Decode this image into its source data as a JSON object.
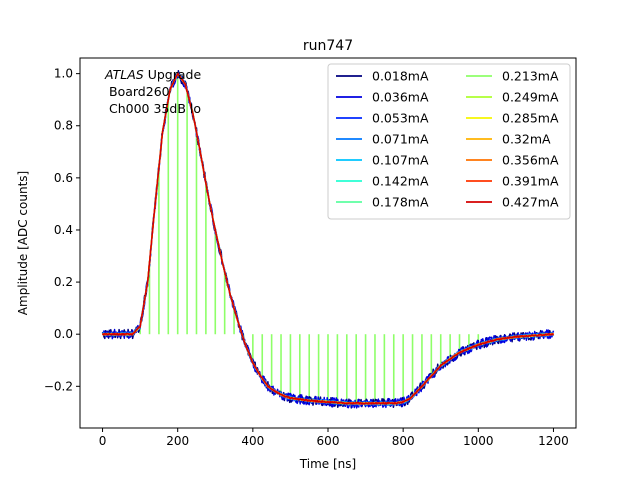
{
  "chart_data": {
    "type": "line",
    "title": "run747",
    "xlabel": "Time [ns]",
    "ylabel": "Amplitude [ADC counts]",
    "xlim": [
      -60,
      1260
    ],
    "ylim": [
      -0.36,
      1.06
    ],
    "xticks": [
      0,
      200,
      400,
      600,
      800,
      1000,
      1200
    ],
    "yticks": [
      -0.2,
      0.0,
      0.2,
      0.4,
      0.6,
      0.8,
      1.0
    ],
    "xtick_labels": [
      "0",
      "200",
      "400",
      "600",
      "800",
      "1000",
      "1200"
    ],
    "ytick_labels": [
      "−0.2",
      "0.0",
      "0.2",
      "0.4",
      "0.6",
      "0.8",
      "1.0"
    ],
    "grid": false,
    "legend_position": "top-right",
    "legend_columns": 2,
    "annotation": {
      "italic": "ATLAS",
      "rest": " Upgrade",
      "line2": "Board260",
      "line3": "Ch000 35dB lo"
    },
    "pulse_shape": {
      "x": [
        0,
        80,
        100,
        120,
        140,
        160,
        180,
        200,
        220,
        240,
        260,
        280,
        300,
        320,
        340,
        360,
        380,
        400,
        420,
        440,
        460,
        480,
        500,
        550,
        600,
        650,
        700,
        750,
        780,
        800,
        820,
        850,
        900,
        950,
        1000,
        1050,
        1100,
        1150,
        1200
      ],
      "y": [
        0.0,
        0.0,
        0.03,
        0.2,
        0.5,
        0.78,
        0.94,
        1.0,
        0.96,
        0.85,
        0.7,
        0.54,
        0.4,
        0.27,
        0.15,
        0.05,
        -0.04,
        -0.11,
        -0.16,
        -0.2,
        -0.22,
        -0.235,
        -0.245,
        -0.255,
        -0.26,
        -0.265,
        -0.265,
        -0.265,
        -0.265,
        -0.26,
        -0.245,
        -0.2,
        -0.12,
        -0.07,
        -0.04,
        -0.02,
        -0.01,
        -0.005,
        0.0
      ]
    },
    "sampled_series_index": 7,
    "sample_times": [
      100,
      125,
      150,
      175,
      200,
      225,
      250,
      275,
      300,
      325,
      350,
      375,
      400,
      425,
      450,
      475,
      500,
      525,
      550,
      575,
      600,
      625,
      650,
      675,
      700,
      725,
      750,
      775,
      800,
      825,
      850,
      875,
      900,
      925,
      950,
      975,
      1000
    ],
    "series": [
      {
        "name": "0.018mA",
        "color": "#00007f"
      },
      {
        "name": "0.036mA",
        "color": "#0000e1"
      },
      {
        "name": "0.053mA",
        "color": "#0028ff"
      },
      {
        "name": "0.071mA",
        "color": "#0078ff"
      },
      {
        "name": "0.107mA",
        "color": "#00c4ff"
      },
      {
        "name": "0.142mA",
        "color": "#24ffd3"
      },
      {
        "name": "0.178mA",
        "color": "#5bffa0"
      },
      {
        "name": "0.213mA",
        "color": "#8eff68"
      },
      {
        "name": "0.249mA",
        "color": "#adff2f"
      },
      {
        "name": "0.285mA",
        "color": "#f6f600"
      },
      {
        "name": "0.32mA",
        "color": "#ffb300"
      },
      {
        "name": "0.356mA",
        "color": "#ff7300"
      },
      {
        "name": "0.391mA",
        "color": "#ff3400"
      },
      {
        "name": "0.427mA",
        "color": "#d40000"
      }
    ]
  }
}
